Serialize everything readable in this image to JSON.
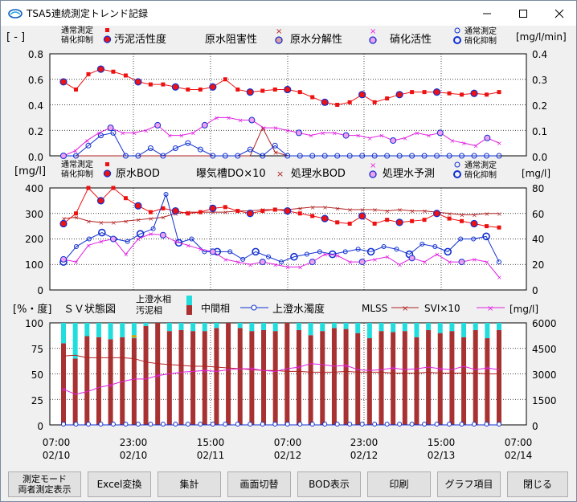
{
  "window": {
    "title": "TSA5連続測定トレンド記録"
  },
  "panel1": {
    "left_unit": "[ - ]",
    "right_unit": "[mg/l/min]",
    "legend": {
      "normal": "通常測定",
      "inhibit": "硝化抑制",
      "s1": "汚泥活性度",
      "s2": "原水阻害性",
      "s3": "原水分解性",
      "s4": "硝化活性",
      "r_normal": "通常測定",
      "r_inhibit": "硝化抑制"
    },
    "y_left_ticks": [
      "0.8",
      "0.6",
      "0.4",
      "0.2",
      "0.0"
    ],
    "y_right_ticks": [
      "0.4",
      "0.3",
      "0.2",
      "0.1",
      "0.0"
    ]
  },
  "panel2": {
    "left_unit": "[mg/l]",
    "right_unit": "[mg/l]",
    "legend": {
      "normal": "通常測定",
      "inhibit": "硝化抑制",
      "s1": "原水BOD",
      "s2": "曝気槽DO×10",
      "s3": "処理水BOD",
      "s4": "処理水予測",
      "r_normal": "通常測定",
      "r_inhibit": "硝化抑制"
    },
    "y_left_ticks": [
      "400",
      "300",
      "200",
      "100",
      "0"
    ],
    "y_right_ticks": [
      "80",
      "60",
      "40",
      "20",
      "0"
    ]
  },
  "panel3": {
    "left_unit": "[%・度]",
    "title": "ＳＶ状態図",
    "legend": {
      "supernatant": "上澄水相",
      "sludge": "汚泥相",
      "middle": "中間相",
      "turbidity": "上澄水濁度",
      "mlss": "MLSS",
      "svi": "SVI×10",
      "right_unit": "[mg/l]"
    },
    "y_left_ticks": [
      "100",
      "75",
      "50",
      "25",
      "0"
    ],
    "y_right_ticks": [
      "6000",
      "4500",
      "3000",
      "1500",
      "0"
    ]
  },
  "x_axis": [
    {
      "time": "07:00",
      "date": "02/10"
    },
    {
      "time": "23:00",
      "date": "02/10"
    },
    {
      "time": "15:00",
      "date": "02/11"
    },
    {
      "time": "07:00",
      "date": "02/12"
    },
    {
      "time": "23:00",
      "date": "02/12"
    },
    {
      "time": "15:00",
      "date": "02/13"
    },
    {
      "time": "07:00",
      "date": "02/14"
    }
  ],
  "buttons": {
    "mode": "測定モード\n両者測定表示",
    "excel": "Excel変換",
    "aggregate": "集計",
    "screen": "画面切替",
    "bod": "BOD表示",
    "print": "印刷",
    "graph": "グラフ項目",
    "close": "閉じる"
  },
  "colors": {
    "red": "#ee1111",
    "blue": "#1030d0",
    "magenta": "#e020e0",
    "brown": "#b02020",
    "cyan": "#22dddd",
    "sludge": "#a83232",
    "orange": "#e0a000"
  },
  "chart_data": [
    {
      "type": "line",
      "title": "",
      "ylim": [
        0,
        0.8
      ],
      "y2lim": [
        0,
        0.4
      ],
      "series": [
        {
          "name": "汚泥活性度",
          "axis": "left",
          "values": [
            0.58,
            0.52,
            0.64,
            0.68,
            0.66,
            0.63,
            0.58,
            0.56,
            0.56,
            0.54,
            0.52,
            0.52,
            0.54,
            0.6,
            0.52,
            0.5,
            0.51,
            0.52,
            0.52,
            0.5,
            0.46,
            0.42,
            0.4,
            0.42,
            0.48,
            0.42,
            0.45,
            0.48,
            0.5,
            0.5,
            0.5,
            0.49,
            0.48,
            0.49,
            0.48,
            0.5
          ]
        },
        {
          "name": "原水阻害性",
          "axis": "left",
          "values": [
            0.0,
            0.0,
            0.0,
            0.0,
            0.0,
            0.0,
            0.0,
            0.0,
            0.0,
            0.0,
            0.0,
            0.0,
            0.0,
            0.0,
            0.0,
            0.0,
            0.22,
            0.03,
            0.0,
            0.0,
            0.0,
            0.0,
            0.0,
            0.0,
            0.0,
            0.0,
            0.0,
            0.0,
            0.0,
            0.0,
            0.0,
            0.0,
            0.0,
            0.0,
            0.0,
            0.0
          ]
        },
        {
          "name": "原水分解性",
          "axis": "left",
          "values": [
            0.0,
            0.0,
            0.08,
            0.16,
            0.18,
            0.0,
            0.0,
            0.06,
            0.0,
            0.06,
            0.1,
            0.05,
            0.0,
            0.0,
            0.0,
            0.05,
            0.0,
            0.08,
            0.0,
            0.0,
            0.0,
            0.0,
            0.0,
            0.0,
            0.0,
            0.0,
            0.0,
            0.0,
            0.0,
            0.0,
            0.0,
            0.0,
            0.0,
            0.0,
            0.0,
            0.0
          ]
        },
        {
          "name": "硝化活性",
          "axis": "right",
          "values": [
            0.0,
            0.02,
            0.06,
            0.09,
            0.11,
            0.09,
            0.09,
            0.1,
            0.12,
            0.08,
            0.08,
            0.09,
            0.12,
            0.15,
            0.15,
            0.14,
            0.14,
            0.11,
            0.11,
            0.1,
            0.09,
            0.08,
            0.09,
            0.09,
            0.08,
            0.08,
            0.07,
            0.08,
            0.06,
            0.07,
            0.09,
            0.08,
            0.09,
            0.06,
            0.05,
            0.04,
            0.07,
            0.05
          ]
        }
      ]
    },
    {
      "type": "line",
      "ylim": [
        0,
        400
      ],
      "y2lim": [
        0,
        80
      ],
      "series": [
        {
          "name": "原水BOD",
          "axis": "left",
          "values": [
            260,
            300,
            400,
            350,
            400,
            360,
            330,
            305,
            320,
            310,
            300,
            305,
            320,
            325,
            310,
            300,
            310,
            315,
            310,
            300,
            290,
            280,
            265,
            260,
            290,
            260,
            275,
            265,
            270,
            275,
            300,
            280,
            270,
            260,
            250,
            245
          ]
        },
        {
          "name": "曝気槽DO×10",
          "axis": "left",
          "values": [
            280,
            285,
            270,
            265,
            265,
            270,
            275,
            280,
            285,
            300,
            305,
            305,
            305,
            305,
            310,
            310,
            315,
            315,
            315,
            320,
            325,
            325,
            320,
            315,
            315,
            315,
            310,
            315,
            310,
            310,
            305,
            300,
            295,
            295,
            300,
            300
          ]
        },
        {
          "name": "処理水BOD",
          "axis": "left",
          "values": [
            0,
            0,
            0,
            0,
            0,
            0,
            0,
            0,
            0,
            0,
            0,
            0,
            0,
            0,
            0,
            0,
            0,
            0,
            0,
            0,
            0,
            0,
            0,
            0,
            0,
            0,
            0,
            0,
            0,
            0,
            0,
            0,
            0,
            0,
            0,
            0
          ]
        },
        {
          "name": "処理水予測",
          "axis": "right",
          "values": [
            24,
            22,
            35,
            38,
            40,
            28,
            40,
            44,
            43,
            38,
            35,
            32,
            30,
            24,
            22,
            20,
            22,
            20,
            18,
            18,
            22,
            28,
            27,
            22,
            22,
            24,
            26,
            20,
            25,
            22,
            28,
            22,
            22,
            24,
            22,
            10
          ]
        },
        {
          "name": "",
          "axis": "right",
          "values": [
            22,
            34,
            40,
            45,
            40,
            38,
            44,
            48,
            75,
            37,
            40,
            30,
            30,
            30,
            24,
            30,
            26,
            22,
            26,
            28,
            30,
            28,
            30,
            32,
            30,
            34,
            32,
            28,
            36,
            34,
            30,
            40,
            40,
            42,
            22
          ]
        }
      ]
    },
    {
      "type": "bar",
      "title": "ＳＶ状態図",
      "ylim": [
        0,
        100
      ],
      "y2lim": [
        0,
        6000
      ],
      "series": [
        {
          "name": "汚泥相",
          "values": [
            80,
            65,
            87,
            86,
            84,
            86,
            85,
            97,
            100,
            92,
            93,
            92,
            92,
            95,
            100,
            95,
            92,
            93,
            92,
            100,
            93,
            88,
            92,
            95,
            94,
            90,
            85,
            92,
            91,
            92,
            86,
            93,
            90,
            92,
            86,
            93,
            85,
            93
          ]
        },
        {
          "name": "上澄水相",
          "values": [
            20,
            35,
            13,
            14,
            16,
            14,
            15,
            3,
            0,
            8,
            7,
            8,
            8,
            5,
            0,
            5,
            8,
            7,
            8,
            0,
            7,
            12,
            8,
            5,
            6,
            10,
            15,
            8,
            9,
            8,
            14,
            7,
            10,
            8,
            14,
            7,
            15,
            7
          ]
        },
        {
          "name": "上澄水濁度",
          "values": [
            0,
            0,
            0,
            0,
            0,
            0,
            0,
            0,
            0,
            0,
            0,
            0,
            0,
            0,
            0,
            0,
            0,
            0,
            0,
            0,
            0,
            0,
            0,
            0,
            0,
            0,
            0,
            0,
            0,
            0,
            0,
            0,
            0,
            0,
            0,
            0
          ]
        },
        {
          "name": "MLSS",
          "values": [
            4050,
            4100,
            3950,
            3950,
            3950,
            3950,
            3900,
            3700,
            3600,
            3550,
            3500,
            3450,
            3450,
            3400,
            3350,
            3300,
            3250,
            3200,
            3200,
            3150,
            3150,
            3100,
            3100,
            3100,
            3150,
            3100,
            3100,
            3100,
            3050,
            3050,
            3050,
            3100,
            3050,
            3050,
            3050,
            3050,
            3000,
            3000
          ]
        },
        {
          "name": "SVI×10",
          "values": [
            2100,
            1800,
            1950,
            2200,
            2350,
            2550,
            2700,
            2700,
            2900,
            3000,
            3100,
            3150,
            3200,
            3150,
            3250,
            3300,
            3300,
            3200,
            3150,
            3300,
            3400,
            3600,
            3550,
            3450,
            3500,
            3250,
            3200,
            3250,
            3350,
            3250,
            3300,
            3400,
            3300,
            3250,
            3450,
            3250,
            3350,
            3250
          ]
        }
      ]
    }
  ]
}
